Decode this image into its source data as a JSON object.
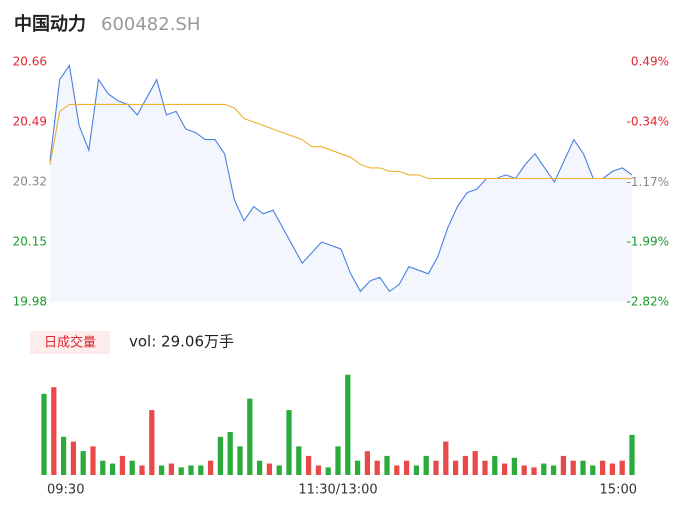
{
  "header": {
    "name": "中国动力",
    "code": "600482.SH"
  },
  "chart_data": [
    {
      "type": "line",
      "x": [
        0,
        4,
        8,
        12,
        16,
        20,
        24,
        28,
        32,
        36,
        40,
        44,
        48,
        52,
        56,
        60,
        64,
        68,
        72,
        76,
        80,
        84,
        88,
        92,
        96,
        100,
        104,
        108,
        112,
        116,
        120,
        124,
        128,
        132,
        136,
        140,
        144,
        148,
        152,
        156,
        160,
        164,
        168,
        172,
        176,
        180,
        184,
        188,
        192,
        196,
        200,
        204,
        208,
        212,
        216,
        220,
        224,
        228,
        232,
        236,
        240
      ],
      "series": [
        {
          "name": "price",
          "color": "#4a7fe0",
          "values": [
            20.38,
            20.61,
            20.65,
            20.48,
            20.41,
            20.61,
            20.57,
            20.55,
            20.54,
            20.51,
            20.56,
            20.61,
            20.51,
            20.52,
            20.47,
            20.46,
            20.44,
            20.44,
            20.4,
            20.27,
            20.21,
            20.25,
            20.23,
            20.24,
            20.19,
            20.14,
            20.09,
            20.12,
            20.15,
            20.14,
            20.13,
            20.06,
            20.01,
            20.04,
            20.05,
            20.01,
            20.03,
            20.08,
            20.07,
            20.06,
            20.11,
            20.19,
            20.25,
            20.29,
            20.3,
            20.33,
            20.33,
            20.34,
            20.33,
            20.37,
            20.4,
            20.36,
            20.32,
            20.38,
            20.44,
            20.4,
            20.33,
            20.33,
            20.35,
            20.36,
            20.34
          ]
        },
        {
          "name": "average",
          "color": "#f0b030",
          "values": [
            20.37,
            20.52,
            20.54,
            20.54,
            20.54,
            20.54,
            20.54,
            20.54,
            20.54,
            20.54,
            20.54,
            20.54,
            20.54,
            20.54,
            20.54,
            20.54,
            20.54,
            20.54,
            20.54,
            20.53,
            20.5,
            20.49,
            20.48,
            20.47,
            20.46,
            20.45,
            20.44,
            20.42,
            20.42,
            20.41,
            20.4,
            20.39,
            20.37,
            20.36,
            20.36,
            20.35,
            20.35,
            20.34,
            20.34,
            20.33,
            20.33,
            20.33,
            20.33,
            20.33,
            20.33,
            20.33,
            20.33,
            20.33,
            20.33,
            20.33,
            20.33,
            20.33,
            20.33,
            20.33,
            20.33,
            20.33,
            20.33,
            20.33,
            20.33,
            20.33,
            20.33
          ]
        }
      ],
      "xlim": [
        0,
        240
      ],
      "ylim": [
        19.98,
        20.66
      ],
      "yticks": [
        19.98,
        20.15,
        20.32,
        20.49,
        20.66
      ],
      "ytick_colors": [
        "#1a9a2a",
        "#1a9a2a",
        "#888888",
        "#e0262f",
        "#e0262f"
      ],
      "y2lim": [
        -2.82,
        0.49
      ],
      "y2ticks": [
        {
          "value": -2.82,
          "label": "-2.82%"
        },
        {
          "value": -1.99,
          "label": "-1.99%"
        },
        {
          "value": -1.17,
          "label": "-1.17%"
        },
        {
          "value": -0.34,
          "label": "-0.34%"
        },
        {
          "value": 0.49,
          "label": "0.49%"
        }
      ],
      "y2tick_colors": [
        "#1a9a2a",
        "#1a9a2a",
        "#888888",
        "#e0262f",
        "#e0262f"
      ],
      "area_color": "#f3f6fc"
    },
    {
      "type": "bar",
      "title": "日成交量",
      "summary": "vol: 29.06万手",
      "x": [
        0,
        4,
        8,
        12,
        16,
        20,
        24,
        28,
        32,
        36,
        40,
        44,
        48,
        52,
        56,
        60,
        64,
        68,
        72,
        76,
        80,
        84,
        88,
        92,
        96,
        100,
        104,
        108,
        112,
        116,
        120,
        124,
        128,
        132,
        136,
        140,
        144,
        148,
        152,
        156,
        160,
        164,
        168,
        172,
        176,
        180,
        184,
        188,
        192,
        196,
        200,
        204,
        208,
        212,
        216,
        220,
        224,
        228,
        232,
        236,
        240
      ],
      "values": [
        85,
        92,
        40,
        35,
        25,
        30,
        15,
        12,
        20,
        15,
        10,
        68,
        10,
        12,
        8,
        10,
        10,
        15,
        40,
        45,
        30,
        80,
        15,
        12,
        10,
        68,
        30,
        20,
        10,
        8,
        30,
        105,
        15,
        25,
        15,
        20,
        10,
        15,
        10,
        20,
        15,
        35,
        15,
        20,
        25,
        15,
        20,
        12,
        18,
        10,
        8,
        12,
        10,
        20,
        15,
        15,
        10,
        15,
        12,
        15,
        42
      ],
      "colors": [
        "#2bab3c",
        "#e84a4a",
        "#2bab3c",
        "#e84a4a",
        "#2bab3c",
        "#e84a4a",
        "#2bab3c",
        "#2bab3c",
        "#e84a4a",
        "#2bab3c",
        "#e84a4a",
        "#e84a4a",
        "#2bab3c",
        "#e84a4a",
        "#2bab3c",
        "#2bab3c",
        "#2bab3c",
        "#e84a4a",
        "#2bab3c",
        "#2bab3c",
        "#2bab3c",
        "#2bab3c",
        "#2bab3c",
        "#e84a4a",
        "#2bab3c",
        "#2bab3c",
        "#2bab3c",
        "#e84a4a",
        "#e84a4a",
        "#2bab3c",
        "#2bab3c",
        "#2bab3c",
        "#2bab3c",
        "#e84a4a",
        "#e84a4a",
        "#2bab3c",
        "#e84a4a",
        "#e84a4a",
        "#2bab3c",
        "#2bab3c",
        "#e84a4a",
        "#e84a4a",
        "#e84a4a",
        "#e84a4a",
        "#e84a4a",
        "#e84a4a",
        "#2bab3c",
        "#e84a4a",
        "#2bab3c",
        "#e84a4a",
        "#e84a4a",
        "#2bab3c",
        "#2bab3c",
        "#e84a4a",
        "#e84a4a",
        "#2bab3c",
        "#2bab3c",
        "#e84a4a",
        "#e84a4a",
        "#e84a4a",
        "#2bab3c"
      ],
      "xlim": [
        0,
        240
      ],
      "ylim": [
        0,
        110
      ],
      "xticks": [
        {
          "value": 0,
          "label": "09:30"
        },
        {
          "value": 120,
          "label": "11:30/13:00"
        },
        {
          "value": 240,
          "label": "15:00"
        }
      ]
    }
  ]
}
